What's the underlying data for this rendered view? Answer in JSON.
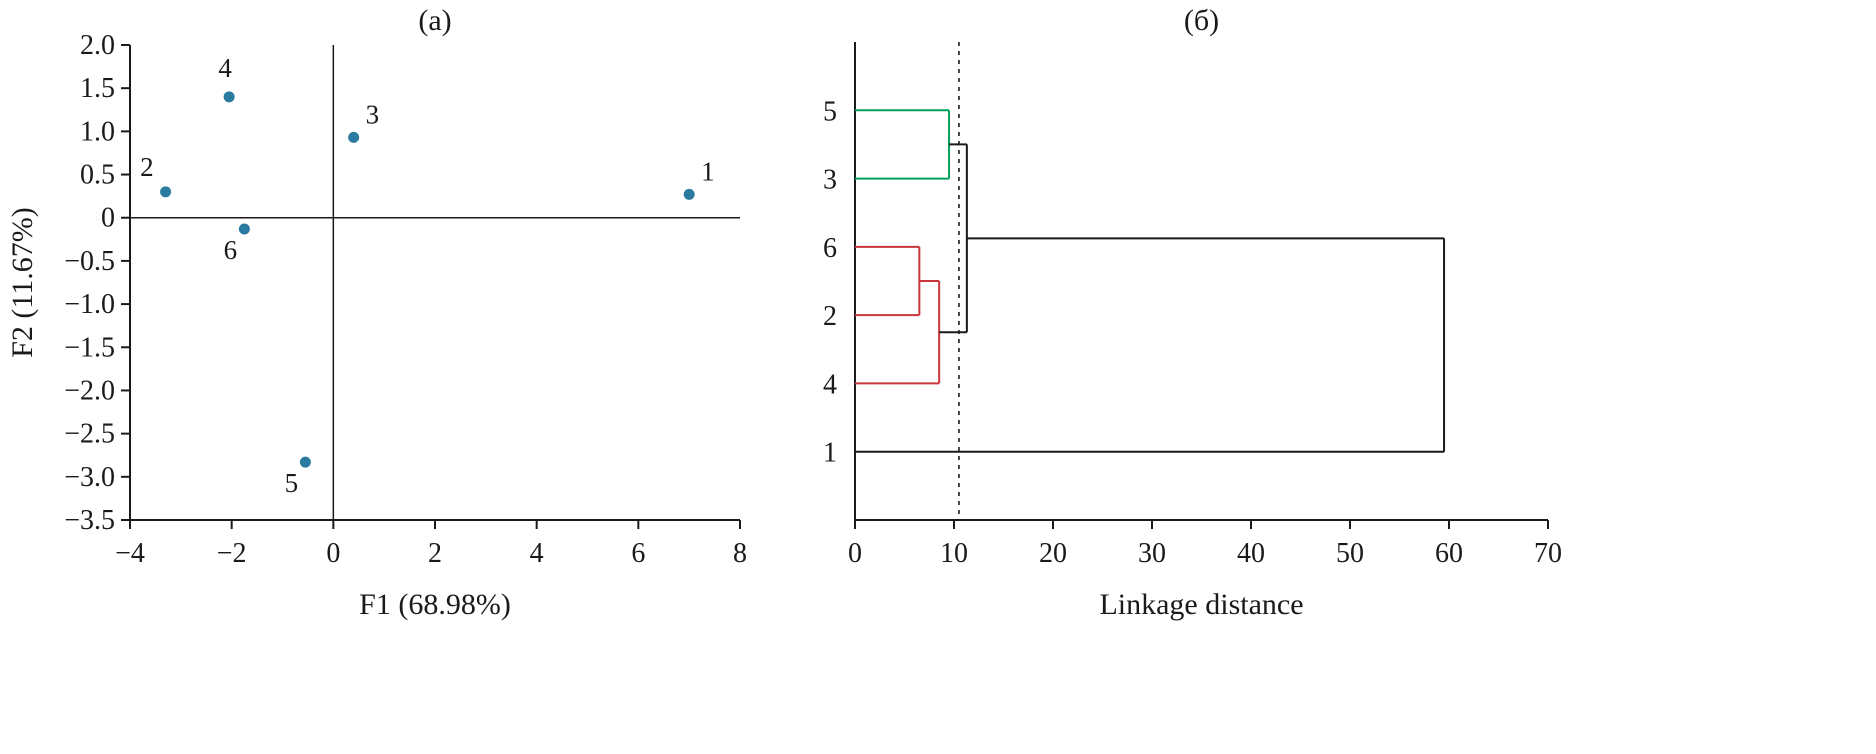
{
  "figure": {
    "panel_a_title": "(а)",
    "panel_b_title": "(б)"
  },
  "colors": {
    "axis": "#1a1a1a",
    "marker": "#2b7ba0",
    "red_label": "#c9252c",
    "purple_label": "#7d3f98",
    "black_label": "#1a1a1a",
    "green_link": "#00a05a",
    "red_link": "#c8363c",
    "black_link": "#1a1a1a"
  },
  "chart_data": [
    {
      "type": "scatter",
      "title": "(а)",
      "xlabel": "F1 (68.98%)",
      "ylabel": "F2 (11.67%)",
      "xlim": [
        -4,
        8
      ],
      "ylim": [
        -3.5,
        2.0
      ],
      "grid": false,
      "zero_lines": true,
      "marker_color": "#2b7ba0",
      "xticks": [
        {
          "v": -4,
          "label": "−4"
        },
        {
          "v": -2,
          "label": "−2"
        },
        {
          "v": 0,
          "label": "0"
        },
        {
          "v": 2,
          "label": "2"
        },
        {
          "v": 4,
          "label": "4"
        },
        {
          "v": 6,
          "label": "6"
        },
        {
          "v": 8,
          "label": "8"
        }
      ],
      "yticks": [
        {
          "v": 2.0,
          "label": "2.0"
        },
        {
          "v": 1.5,
          "label": "1.5"
        },
        {
          "v": 1.0,
          "label": "1.0"
        },
        {
          "v": 0.5,
          "label": "0.5"
        },
        {
          "v": 0,
          "label": "0"
        },
        {
          "v": -0.5,
          "label": "−0.5"
        },
        {
          "v": -1.0,
          "label": "−1.0"
        },
        {
          "v": -1.5,
          "label": "−1.5"
        },
        {
          "v": -2.0,
          "label": "−2.0"
        },
        {
          "v": -2.5,
          "label": "−2.5"
        },
        {
          "v": -3.0,
          "label": "−3.0"
        },
        {
          "v": -3.5,
          "label": "−3.5"
        }
      ],
      "points": [
        {
          "label": "1",
          "x": 7.0,
          "y": 0.27,
          "label_color": "#c9252c",
          "anchor": "top-right"
        },
        {
          "label": "2",
          "x": -3.3,
          "y": 0.3,
          "label_color": "#c9252c",
          "anchor": "top-left"
        },
        {
          "label": "3",
          "x": 0.4,
          "y": 0.93,
          "label_color": "#7d3f98",
          "anchor": "top-right"
        },
        {
          "label": "4",
          "x": -2.05,
          "y": 1.4,
          "label_color": "#1a1a1a",
          "anchor": "top"
        },
        {
          "label": "5",
          "x": -0.55,
          "y": -2.83,
          "label_color": "#1a1a1a",
          "anchor": "bottom-left"
        },
        {
          "label": "6",
          "x": -1.75,
          "y": -0.13,
          "label_color": "#7d3f98",
          "anchor": "bottom-left"
        }
      ]
    },
    {
      "type": "dendrogram",
      "title": "(б)",
      "xlabel": "Linkage distance",
      "xlim": [
        0,
        70
      ],
      "xticks": [
        {
          "v": 0,
          "label": "0"
        },
        {
          "v": 10,
          "label": "10"
        },
        {
          "v": 20,
          "label": "20"
        },
        {
          "v": 30,
          "label": "30"
        },
        {
          "v": 40,
          "label": "40"
        },
        {
          "v": 50,
          "label": "50"
        },
        {
          "v": 60,
          "label": "60"
        },
        {
          "v": 70,
          "label": "70"
        }
      ],
      "cutoff": 10.5,
      "leaves": [
        {
          "id": "5",
          "label_color": "#1a1a1a"
        },
        {
          "id": "3",
          "label_color": "#7d3f98"
        },
        {
          "id": "6",
          "label_color": "#7d3f98"
        },
        {
          "id": "2",
          "label_color": "#c9252c"
        },
        {
          "id": "4",
          "label_color": "#1a1a1a"
        },
        {
          "id": "1",
          "label_color": "#c9252c"
        }
      ],
      "merges": [
        {
          "id": "A",
          "children": [
            "5",
            "3"
          ],
          "distance": 9.5,
          "color": "#00a05a"
        },
        {
          "id": "B",
          "children": [
            "6",
            "2"
          ],
          "distance": 6.5,
          "color": "#c8363c"
        },
        {
          "id": "C",
          "children": [
            "B",
            "4"
          ],
          "distance": 8.5,
          "color": "#c8363c"
        },
        {
          "id": "D",
          "children": [
            "A",
            "C"
          ],
          "distance": 11.3,
          "color": "#1a1a1a"
        },
        {
          "id": "E",
          "children": [
            "D",
            "1"
          ],
          "distance": 59.5,
          "color": "#1a1a1a"
        }
      ]
    }
  ]
}
